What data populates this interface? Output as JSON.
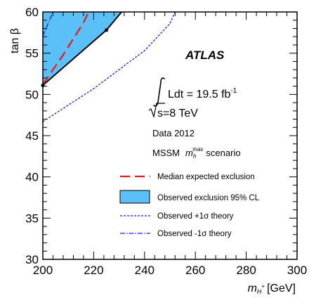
{
  "chart_data": {
    "type": "area",
    "experiment": "ATLAS",
    "annotations": {
      "lumi_text": "Ldt = 19.5 fb",
      "lumi_sup": "-1",
      "energy_text": "s=8 TeV",
      "data_text": "Data 2012",
      "scenario_prefix": "MSSM",
      "scenario_var": "m",
      "scenario_sub": "h",
      "scenario_sup": "max",
      "scenario_suffix": "scenario"
    },
    "xlabel_var": "m",
    "xlabel_sub": "H",
    "xlabel_sup": "+",
    "xlabel_unit": "[GeV]",
    "ylabel": "tan β",
    "xlim": [
      200,
      300
    ],
    "ylim": [
      30,
      60
    ],
    "xticks": [
      200,
      220,
      240,
      260,
      280,
      300
    ],
    "yticks": [
      30,
      35,
      40,
      45,
      50,
      55,
      60
    ],
    "colors": {
      "observed_fill": "#5bc0f8",
      "expected": "#e41a1c",
      "theory": "#1a1ae6"
    },
    "series": [
      {
        "name": "Median expected exclusion",
        "style": "dashed",
        "points": [
          [
            200,
            51.2
          ],
          [
            208,
            54.8
          ],
          [
            216,
            58.7
          ],
          [
            218,
            60
          ]
        ]
      },
      {
        "name": "Observed exclusion 95% CL",
        "style": "filled",
        "points": [
          [
            200,
            51.1
          ],
          [
            225,
            57.8
          ],
          [
            231,
            60
          ]
        ],
        "markers": [
          [
            200,
            51.1
          ],
          [
            225,
            57.8
          ]
        ]
      },
      {
        "name": "Observed +1σ theory",
        "style": "dotted",
        "points": [
          [
            200,
            46.7
          ],
          [
            220,
            50.7
          ],
          [
            240,
            55.3
          ],
          [
            250,
            58.6
          ],
          [
            252,
            60
          ]
        ]
      },
      {
        "name": "Observed -1σ theory",
        "style": "dashdot",
        "points": [
          [
            200,
            57.1
          ],
          [
            204,
            60
          ]
        ]
      }
    ],
    "legend_position": "bottom-right"
  }
}
